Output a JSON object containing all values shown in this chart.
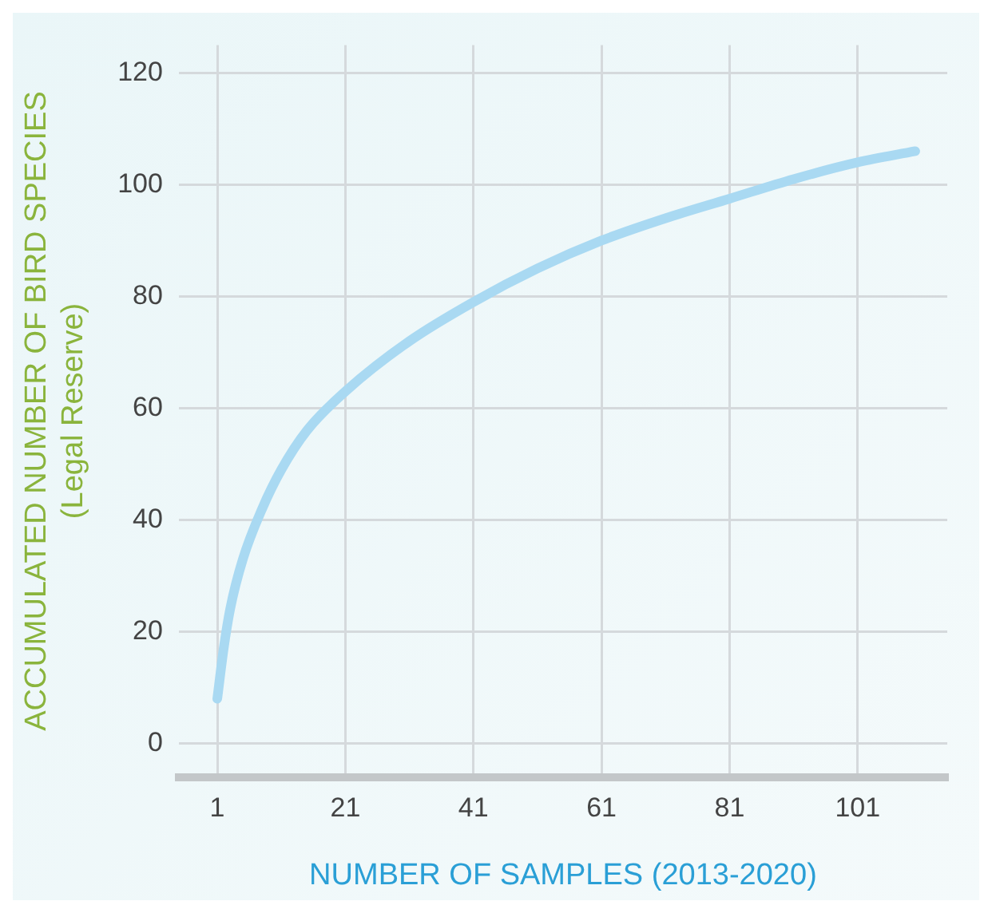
{
  "chart_data": {
    "type": "line",
    "xlabel": "NUMBER OF SAMPLES (2013-2020)",
    "ylabel": "ACCUMULATED NUMBER OF BIRD SPECIES\n(Legal Reserve)",
    "series": [
      {
        "color": "#a9d9f2",
        "x": [
          1,
          2,
          3,
          5,
          8,
          11,
          15,
          21,
          31,
          41,
          51,
          61,
          71,
          81,
          91,
          101,
          110
        ],
        "values": [
          8,
          17,
          24,
          33,
          42,
          49,
          56,
          63,
          72,
          79,
          85,
          90,
          94,
          97.5,
          101,
          104,
          106
        ]
      }
    ],
    "xlim": [
      -5,
      115
    ],
    "xticks": [
      1,
      21,
      41,
      61,
      81,
      101
    ],
    "ylim": [
      -6,
      125
    ],
    "yticks": [
      0,
      20,
      40,
      60,
      80,
      100,
      120
    ],
    "grid": true,
    "marker": "none",
    "line_style": "solid",
    "legend": false
  }
}
